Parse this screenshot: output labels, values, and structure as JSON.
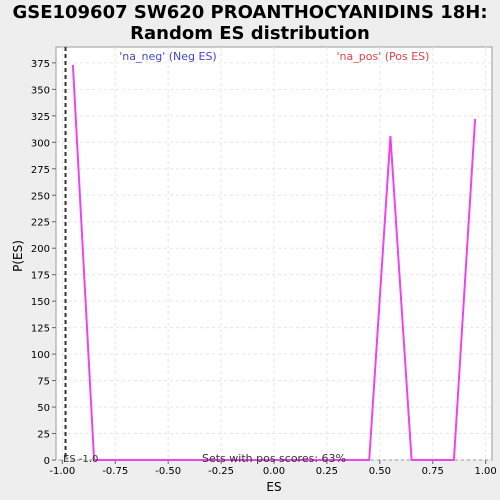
{
  "chart_data": {
    "type": "line",
    "title_line1": "GSE109607 SW620 PROANTHOCYANIDINS 18H:",
    "title_line2": "Random ES distribution",
    "xlabel": "ES",
    "ylabel": "P(ES)",
    "xlim": [
      -1.03,
      1.03
    ],
    "ylim": [
      0,
      390
    ],
    "x_ticks": [
      -1.0,
      -0.75,
      -0.5,
      -0.25,
      0.0,
      0.25,
      0.5,
      0.75,
      1.0
    ],
    "x_tick_labels": [
      "-1.00",
      "-0.75",
      "-0.50",
      "-0.25",
      "0.00",
      "0.25",
      "0.50",
      "0.75",
      "1.00"
    ],
    "y_ticks": [
      0,
      25,
      50,
      75,
      100,
      125,
      150,
      175,
      200,
      225,
      250,
      275,
      300,
      325,
      350,
      375
    ],
    "y_tick_labels": [
      "0",
      "25",
      "50",
      "75",
      "100",
      "125",
      "150",
      "175",
      "200",
      "225",
      "250",
      "275",
      "300",
      "325",
      "350",
      "375"
    ],
    "grid": true,
    "legend": {
      "neg_label": "'na_neg' (Neg ES)",
      "pos_label": "'na_pos' (Pos ES)",
      "neg_color": "#4444cc",
      "pos_color": "#dd4444"
    },
    "series": [
      {
        "color": "#ee44ee",
        "x": [
          -0.95,
          -0.85,
          -0.75,
          -0.65,
          -0.55,
          -0.45,
          -0.35,
          -0.25,
          -0.15,
          -0.05,
          0.05,
          0.15,
          0.25,
          0.35,
          0.45,
          0.55,
          0.65,
          0.75,
          0.85,
          0.95
        ],
        "y": [
          373,
          0,
          0,
          0,
          0,
          0,
          0,
          0,
          0,
          0,
          0,
          0,
          0,
          0,
          0,
          306,
          0,
          0,
          0,
          322
        ]
      }
    ],
    "vline": {
      "x": -0.985,
      "label": "ES -1.0",
      "style": "dashed",
      "color": "#333333"
    },
    "annotation": "Sets with pos scores: 63%"
  }
}
